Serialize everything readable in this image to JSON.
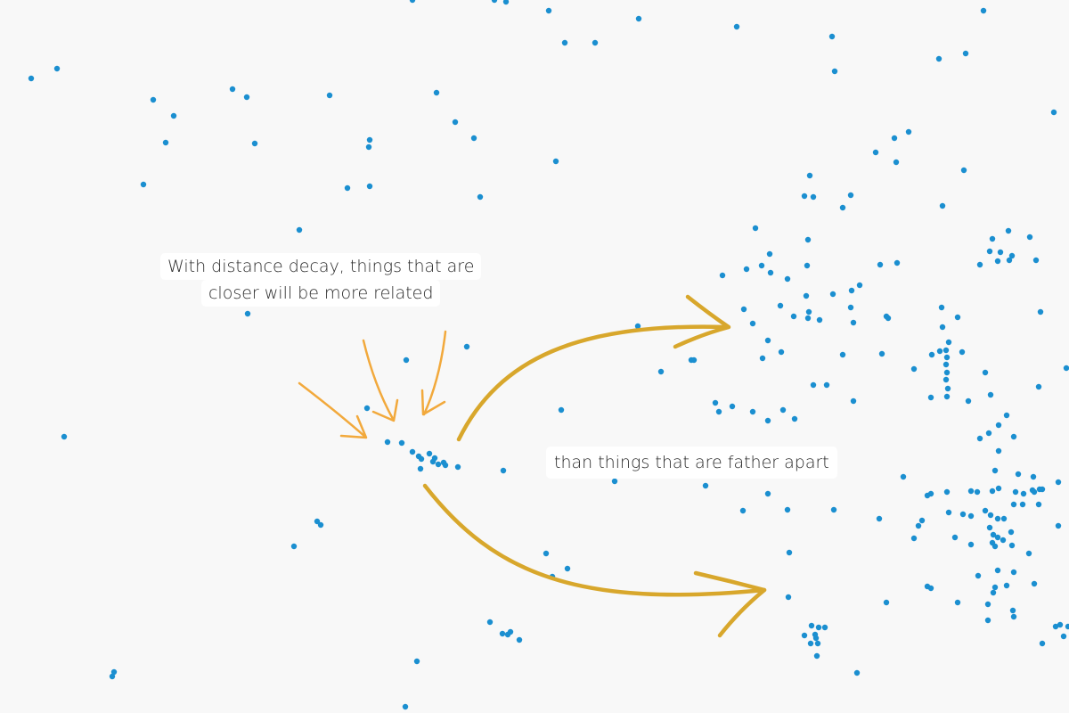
{
  "colors": {
    "background": "#f8f8f8",
    "point": "#1b8fd0",
    "arrow_dark": "#d8a72c",
    "arrow_light": "#f2a93c"
  },
  "annotations": {
    "near_line1": "With distance decay, things that are",
    "near_line2": "closer will be more related",
    "far": "than things that are father apart"
  }
}
